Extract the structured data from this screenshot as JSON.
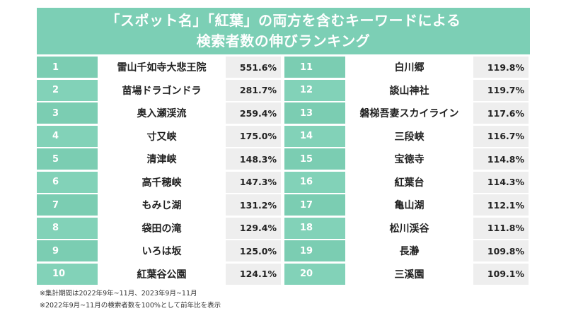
{
  "title": {
    "line1": "「スポット名」「紅葉」の両方を含むキーワードによる",
    "line2": "検索者数の伸びランキング"
  },
  "left_table": [
    {
      "rank": "1",
      "name": "雷山千如寺大悲王院",
      "value": "551.6%"
    },
    {
      "rank": "2",
      "name": "苗場ドラゴンドラ",
      "value": "281.7%"
    },
    {
      "rank": "3",
      "name": "奥入瀬渓流",
      "value": "259.4%"
    },
    {
      "rank": "4",
      "name": "寸又峡",
      "value": "175.0%"
    },
    {
      "rank": "5",
      "name": "清津峡",
      "value": "148.3%"
    },
    {
      "rank": "6",
      "name": "高千穂峡",
      "value": "147.3%"
    },
    {
      "rank": "7",
      "name": "もみじ湖",
      "value": "131.2%"
    },
    {
      "rank": "8",
      "name": "袋田の滝",
      "value": "129.4%"
    },
    {
      "rank": "9",
      "name": "いろは坂",
      "value": "125.0%"
    },
    {
      "rank": "10",
      "name": "紅葉谷公園",
      "value": "124.1%"
    }
  ],
  "right_table": [
    {
      "rank": "11",
      "name": "白川郷",
      "value": "119.8%"
    },
    {
      "rank": "12",
      "name": "談山神社",
      "value": "119.7%"
    },
    {
      "rank": "13",
      "name": "磐梯吾妻スカイライン",
      "value": "117.6%"
    },
    {
      "rank": "14",
      "name": "三段峡",
      "value": "116.7%"
    },
    {
      "rank": "15",
      "name": "宝徳寺",
      "value": "114.8%"
    },
    {
      "rank": "16",
      "name": "紅葉台",
      "value": "114.3%"
    },
    {
      "rank": "17",
      "name": "亀山湖",
      "value": "112.1%"
    },
    {
      "rank": "18",
      "name": "松川渓谷",
      "value": "111.8%"
    },
    {
      "rank": "19",
      "name": "長瀞",
      "value": "109.8%"
    },
    {
      "rank": "20",
      "name": "三溪園",
      "value": "109.1%"
    }
  ],
  "notes": [
    "※集計期間は2022年9年~11月、2023年9月~11月",
    "※2022年9月~11月の検索者数を100%として前年比を表示"
  ]
}
